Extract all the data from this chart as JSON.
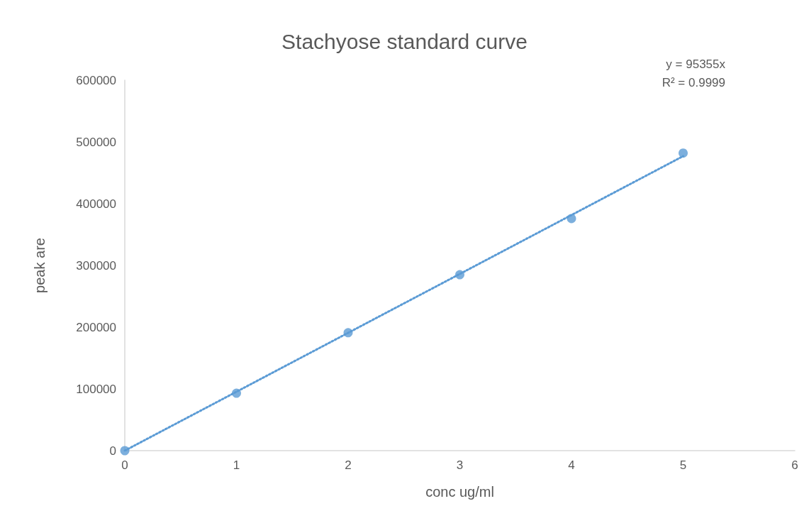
{
  "chart_data": {
    "type": "scatter",
    "title": "Stachyose standard curve",
    "xlabel": "conc ug/ml",
    "ylabel": "peak are",
    "annotations": [
      "y = 95355x",
      "R² = 0.9999"
    ],
    "x": [
      0,
      1,
      2,
      3,
      4,
      5
    ],
    "series": [
      {
        "color": "#5b9bd5",
        "marker": "circle",
        "values": [
          0,
          93000,
          191000,
          285000,
          376000,
          482000
        ]
      },
      {
        "type": "line",
        "color": "#5b9bd5",
        "marker": "none",
        "line_style": "dotted",
        "x": [
          0,
          5
        ],
        "values": [
          0,
          477000
        ]
      }
    ],
    "xlim": [
      0,
      6
    ],
    "xticks": [
      0,
      1,
      2,
      3,
      4,
      5,
      6
    ],
    "ylim": [
      0,
      600000
    ],
    "yticks": [
      0,
      100000,
      200000,
      300000,
      400000,
      500000,
      600000
    ],
    "grid": false
  }
}
